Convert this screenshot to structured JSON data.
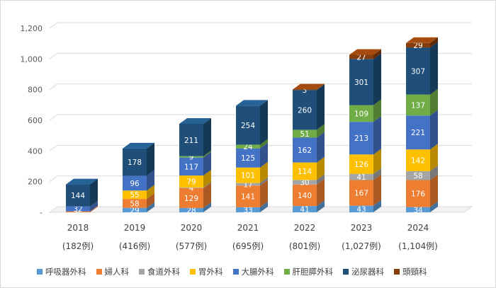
{
  "chart_data": {
    "type": "bar",
    "stacked": true,
    "style": "3d",
    "ylim": [
      0,
      1200
    ],
    "y_ticks": [
      "-",
      "200",
      "400",
      "600",
      "800",
      "1,000",
      "1,200"
    ],
    "grid": true,
    "legend_position": "bottom",
    "categories": [
      "2018",
      "2019",
      "2020",
      "2021",
      "2022",
      "2023",
      "2024"
    ],
    "category_sublabels": [
      "(182例)",
      "(416例)",
      "(577例)",
      "(695例)",
      "(801例)",
      "(1,027例)",
      "(1,104例)"
    ],
    "series": [
      {
        "name": "呼吸器外科",
        "color": "#5b9bd5",
        "values": [
          0,
          29,
          28,
          33,
          41,
          43,
          34
        ]
      },
      {
        "name": "婦人科",
        "color": "#ed7d31",
        "values": [
          6,
          58,
          129,
          141,
          140,
          167,
          176
        ]
      },
      {
        "name": "食道外科",
        "color": "#a5a5a5",
        "values": [
          0,
          0,
          4,
          17,
          30,
          41,
          58
        ]
      },
      {
        "name": "胃外科",
        "color": "#ffc000",
        "values": [
          0,
          55,
          79,
          101,
          114,
          126,
          142
        ]
      },
      {
        "name": "大腸外科",
        "color": "#4472c4",
        "values": [
          32,
          96,
          117,
          125,
          162,
          213,
          221
        ]
      },
      {
        "name": "肝胆膵外科",
        "color": "#70ad47",
        "values": [
          0,
          0,
          9,
          24,
          51,
          109,
          137
        ]
      },
      {
        "name": "泌尿器科",
        "color": "#1f4e79",
        "values": [
          144,
          178,
          211,
          254,
          260,
          301,
          307
        ]
      },
      {
        "name": "頭頸科",
        "color": "#843c0c",
        "values": [
          0,
          0,
          0,
          0,
          3,
          27,
          29
        ]
      }
    ]
  }
}
